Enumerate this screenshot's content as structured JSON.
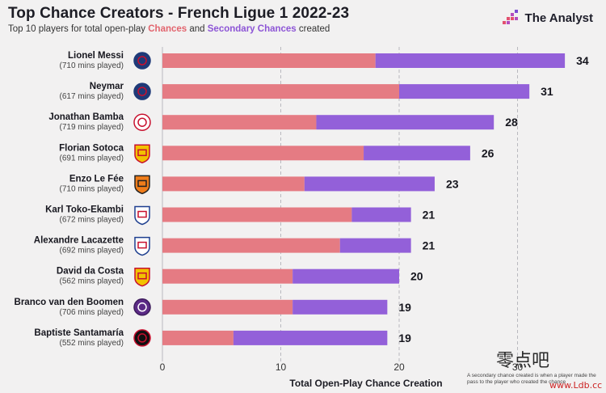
{
  "header": {
    "title": "Top Chance Creators - French Ligue 1 2022-23",
    "subtitle_prefix": "Top 10 players for total open-play ",
    "subtitle_chances": "Chances",
    "subtitle_and": " and ",
    "subtitle_secondary": "Secondary Chances",
    "subtitle_suffix": " created"
  },
  "brand": {
    "name": "The Analyst",
    "icon": "analyst-logo-icon"
  },
  "colors": {
    "chances": "#e57b83",
    "secondary": "#9360d9",
    "background": "#f2f1f1"
  },
  "footnote": "A secondary chance created is when a player made the pass to the player who created the chance",
  "watermark": {
    "text": "零点吧",
    "url": "www.Ldb.cc"
  },
  "chart_data": {
    "type": "bar",
    "orientation": "horizontal",
    "stacked": true,
    "xlabel": "Total Open-Play Chance Creation",
    "xlim": [
      0,
      35
    ],
    "xticks": [
      0,
      10,
      20,
      30
    ],
    "grid": true,
    "categories": [
      {
        "name": "Lionel Messi",
        "minutes": "(710 mins played)",
        "badge": "psg-badge-icon"
      },
      {
        "name": "Neymar",
        "minutes": "(617 mins played)",
        "badge": "psg-badge-icon"
      },
      {
        "name": "Jonathan Bamba",
        "minutes": "(719 mins played)",
        "badge": "lille-badge-icon"
      },
      {
        "name": "Florian Sotoca",
        "minutes": "(691 mins played)",
        "badge": "lens-badge-icon"
      },
      {
        "name": "Enzo Le Fée",
        "minutes": "(710 mins played)",
        "badge": "lorient-badge-icon"
      },
      {
        "name": "Karl Toko-Ekambi",
        "minutes": "(672 mins played)",
        "badge": "lyon-badge-icon"
      },
      {
        "name": "Alexandre Lacazette",
        "minutes": "(692 mins played)",
        "badge": "lyon-badge-icon"
      },
      {
        "name": "David da Costa",
        "minutes": "(562 mins played)",
        "badge": "lens-badge-icon"
      },
      {
        "name": "Branco van den Boomen",
        "minutes": "(706 mins played)",
        "badge": "toulouse-badge-icon"
      },
      {
        "name": "Baptiste Santamaría",
        "minutes": "(552 mins played)",
        "badge": "rennes-badge-icon"
      }
    ],
    "series": [
      {
        "name": "Chances",
        "values": [
          18,
          20,
          13,
          17,
          12,
          16,
          15,
          11,
          11,
          6
        ]
      },
      {
        "name": "Secondary Chances",
        "values": [
          16,
          11,
          15,
          9,
          11,
          5,
          6,
          9,
          8,
          13
        ]
      }
    ],
    "totals": [
      34,
      31,
      28,
      26,
      23,
      21,
      21,
      20,
      19,
      19
    ]
  }
}
